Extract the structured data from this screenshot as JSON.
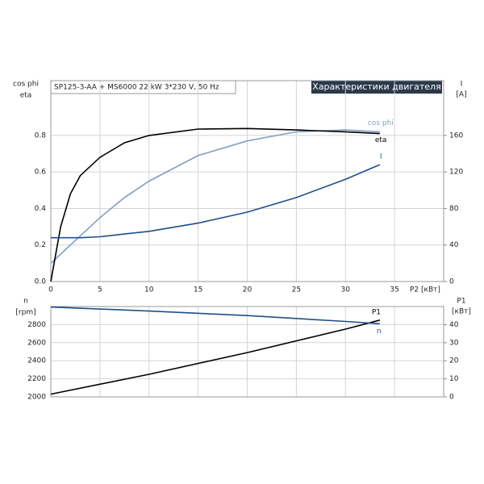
{
  "chart_data": [
    {
      "type": "line",
      "title": "Характеристики двигателя",
      "subtitle": "SP125-3-AA + MS6000  22 kW  3*230 V, 50 Hz",
      "y_label": [
        "cos phi",
        "eta"
      ],
      "y2_label": [
        "I",
        "[A]"
      ],
      "x_label": "P2 [кВт]",
      "x": [
        0,
        1,
        2,
        3,
        5,
        7.5,
        10,
        15,
        20,
        25,
        30,
        33.5
      ],
      "xlim": [
        0,
        40
      ],
      "xticks": [
        0,
        5,
        10,
        15,
        20,
        25,
        30,
        35
      ],
      "ylim": [
        0,
        1.1
      ],
      "yticks": [
        {
          "value": 0,
          "label": "0.0"
        },
        0.2,
        0.4,
        0.6,
        0.8
      ],
      "y2lim": [
        0,
        220
      ],
      "y2ticks": [
        0,
        40,
        80,
        120,
        160
      ],
      "grid": true,
      "series": [
        {
          "name": "cos phi",
          "color": "#7f9fc4",
          "values": [
            0.1,
            0.15,
            0.2,
            0.25,
            0.35,
            0.46,
            0.55,
            0.69,
            0.77,
            0.82,
            0.83,
            0.82
          ]
        },
        {
          "name": "eta",
          "color": "#000000",
          "values": [
            0,
            0.3,
            0.48,
            0.58,
            0.68,
            0.76,
            0.8,
            0.835,
            0.838,
            0.83,
            0.82,
            0.81
          ]
        },
        {
          "name": "I",
          "color": "#1d4f8c",
          "axis": "y2",
          "values": [
            48,
            48,
            48,
            48,
            49,
            52,
            55,
            64,
            76,
            92,
            112,
            128
          ]
        }
      ]
    },
    {
      "type": "line",
      "y_label": [
        "n",
        "[rpm]"
      ],
      "y2_label": [
        "P1",
        "[кВт]"
      ],
      "x": [
        0,
        10,
        20,
        30,
        33.5
      ],
      "xlim": [
        0,
        40
      ],
      "xticks": [
        0,
        5,
        10,
        15,
        20,
        25,
        30,
        35
      ],
      "xtick_labels": false,
      "ylim": [
        2000,
        3000
      ],
      "yticks": [
        2000,
        2200,
        2400,
        2600,
        2800
      ],
      "y2lim": [
        0,
        50
      ],
      "y2ticks": [
        0,
        10,
        20,
        30,
        40
      ],
      "grid": true,
      "series": [
        {
          "name": "P1",
          "color": "#000000",
          "axis": "y2",
          "values": [
            1.5,
            12.5,
            24.5,
            37.5,
            42.5
          ]
        },
        {
          "name": "n",
          "color": "#1d4f8c",
          "values": [
            2995,
            2950,
            2900,
            2835,
            2810
          ]
        }
      ]
    }
  ]
}
